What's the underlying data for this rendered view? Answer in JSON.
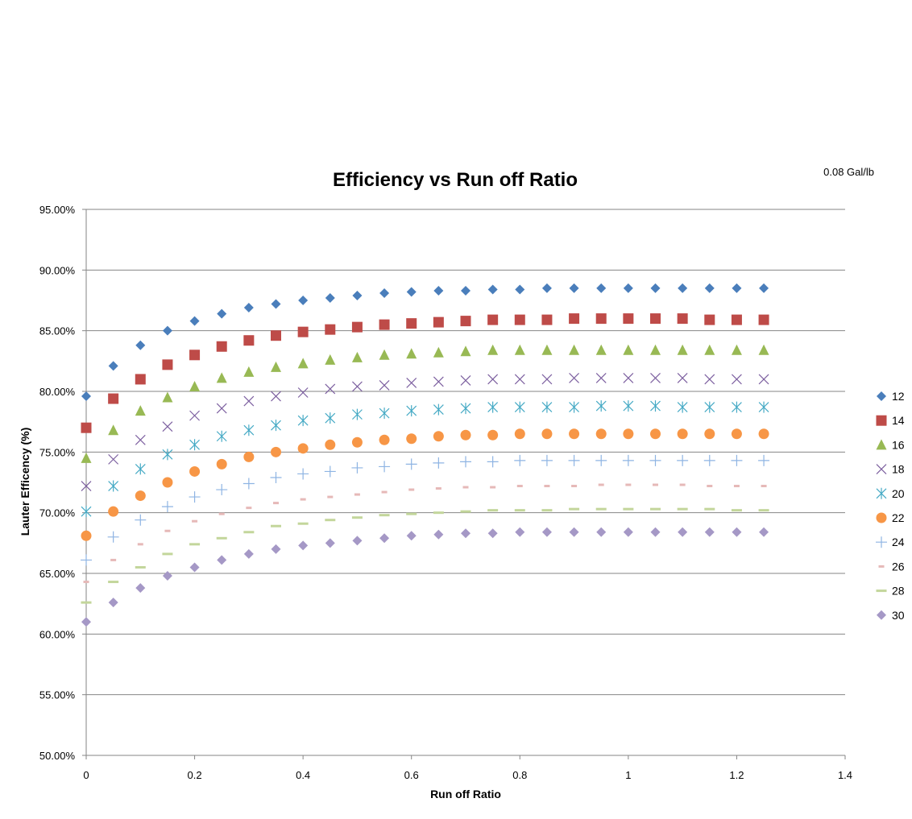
{
  "chart_data": {
    "type": "scatter",
    "title": "Efficiency vs Run off Ratio",
    "annotation": "0.08 Gal/lb",
    "xlabel": "Run off Ratio",
    "ylabel": "Lauter Efficency (%)",
    "xlim": [
      0,
      1.4
    ],
    "ylim": [
      0.5,
      0.95
    ],
    "x_ticks": [
      "0",
      "0.2",
      "0.4",
      "0.6",
      "0.8",
      "1",
      "1.2",
      "1.4"
    ],
    "y_ticks": [
      "50.00%",
      "55.00%",
      "60.00%",
      "65.00%",
      "70.00%",
      "75.00%",
      "80.00%",
      "85.00%",
      "90.00%",
      "95.00%"
    ],
    "grid": "horizontal",
    "legend_position": "right",
    "x": [
      0,
      0.05,
      0.1,
      0.15,
      0.2,
      0.25,
      0.3,
      0.35,
      0.4,
      0.45,
      0.5,
      0.55,
      0.6,
      0.65,
      0.7,
      0.75,
      0.8,
      0.85,
      0.9,
      0.95,
      1.0,
      1.05,
      1.1,
      1.15,
      1.2,
      1.25
    ],
    "series": [
      {
        "name": "12",
        "marker": "diamond",
        "color": "#4a7ebb",
        "values": [
          0.796,
          0.821,
          0.838,
          0.85,
          0.858,
          0.864,
          0.869,
          0.872,
          0.875,
          0.877,
          0.879,
          0.881,
          0.882,
          0.883,
          0.883,
          0.884,
          0.884,
          0.885,
          0.885,
          0.885,
          0.885,
          0.885,
          0.885,
          0.885,
          0.885,
          0.885
        ]
      },
      {
        "name": "14",
        "marker": "square",
        "color": "#be4b48",
        "values": [
          0.77,
          0.794,
          0.81,
          0.822,
          0.83,
          0.837,
          0.842,
          0.846,
          0.849,
          0.851,
          0.853,
          0.855,
          0.856,
          0.857,
          0.858,
          0.859,
          0.859,
          0.859,
          0.86,
          0.86,
          0.86,
          0.86,
          0.86,
          0.859,
          0.859,
          0.859
        ]
      },
      {
        "name": "16",
        "marker": "triangle",
        "color": "#98b954",
        "values": [
          0.745,
          0.768,
          0.784,
          0.795,
          0.804,
          0.811,
          0.816,
          0.82,
          0.823,
          0.826,
          0.828,
          0.83,
          0.831,
          0.832,
          0.833,
          0.834,
          0.834,
          0.834,
          0.834,
          0.834,
          0.834,
          0.834,
          0.834,
          0.834,
          0.834,
          0.834
        ]
      },
      {
        "name": "18",
        "marker": "x",
        "color": "#7d60a0",
        "values": [
          0.722,
          0.744,
          0.76,
          0.771,
          0.78,
          0.786,
          0.792,
          0.796,
          0.799,
          0.802,
          0.804,
          0.805,
          0.807,
          0.808,
          0.809,
          0.81,
          0.81,
          0.81,
          0.811,
          0.811,
          0.811,
          0.811,
          0.811,
          0.81,
          0.81,
          0.81
        ]
      },
      {
        "name": "20",
        "marker": "asterisk",
        "color": "#46aac5",
        "values": [
          0.701,
          0.722,
          0.736,
          0.748,
          0.756,
          0.763,
          0.768,
          0.772,
          0.776,
          0.778,
          0.781,
          0.782,
          0.784,
          0.785,
          0.786,
          0.787,
          0.787,
          0.787,
          0.787,
          0.788,
          0.788,
          0.788,
          0.787,
          0.787,
          0.787,
          0.787
        ]
      },
      {
        "name": "22",
        "marker": "circle",
        "color": "#f79646",
        "values": [
          0.681,
          0.701,
          0.714,
          0.725,
          0.734,
          0.74,
          0.746,
          0.75,
          0.753,
          0.756,
          0.758,
          0.76,
          0.761,
          0.763,
          0.764,
          0.764,
          0.765,
          0.765,
          0.765,
          0.765,
          0.765,
          0.765,
          0.765,
          0.765,
          0.765,
          0.765
        ]
      },
      {
        "name": "24",
        "marker": "plus",
        "color": "#8eb4e3",
        "values": [
          0.661,
          0.68,
          0.694,
          0.705,
          0.713,
          0.719,
          0.724,
          0.729,
          0.732,
          0.734,
          0.737,
          0.738,
          0.74,
          0.741,
          0.742,
          0.742,
          0.743,
          0.743,
          0.743,
          0.743,
          0.743,
          0.743,
          0.743,
          0.743,
          0.743,
          0.743
        ]
      },
      {
        "name": "26",
        "marker": "dash-short",
        "color": "#e6b9b8",
        "values": [
          0.643,
          0.661,
          0.674,
          0.685,
          0.693,
          0.699,
          0.704,
          0.708,
          0.711,
          0.713,
          0.715,
          0.717,
          0.719,
          0.72,
          0.721,
          0.721,
          0.722,
          0.722,
          0.722,
          0.723,
          0.723,
          0.723,
          0.723,
          0.722,
          0.722,
          0.722
        ]
      },
      {
        "name": "28",
        "marker": "dash-long",
        "color": "#c3d69b",
        "values": [
          0.626,
          0.643,
          0.655,
          0.666,
          0.674,
          0.679,
          0.684,
          0.689,
          0.691,
          0.694,
          0.696,
          0.698,
          0.699,
          0.7,
          0.701,
          0.702,
          0.702,
          0.702,
          0.703,
          0.703,
          0.703,
          0.703,
          0.703,
          0.703,
          0.702,
          0.702
        ]
      },
      {
        "name": "30",
        "marker": "diamond",
        "color": "#a598c6",
        "values": [
          0.61,
          0.626,
          0.638,
          0.648,
          0.655,
          0.661,
          0.666,
          0.67,
          0.673,
          0.675,
          0.677,
          0.679,
          0.681,
          0.682,
          0.683,
          0.683,
          0.684,
          0.684,
          0.684,
          0.684,
          0.684,
          0.684,
          0.684,
          0.684,
          0.684,
          0.684
        ]
      }
    ]
  }
}
